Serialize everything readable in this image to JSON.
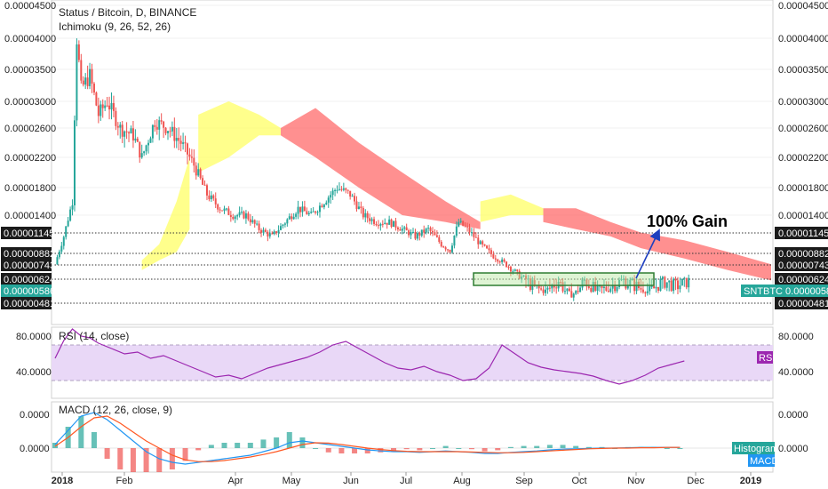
{
  "header": {
    "title": "Status / Bitcoin, D, BINANCE",
    "indicator": "Ichimoku (9, 26, 52, 26)"
  },
  "annotation": {
    "gain_text": "100% Gain"
  },
  "colors": {
    "up": "#26a69a",
    "down": "#ef5350",
    "cloud_bull": "#ffff66",
    "cloud_bear": "#ff6b6b",
    "rsi_line": "#9c27b0",
    "rsi_band": "#e9d8f7",
    "macd_line": "#2196f3",
    "signal_line": "#ff5722",
    "hist_up": "#26a69a",
    "hist_down": "#ef5350",
    "arrow": "#1e3fbf"
  },
  "chart_data": [
    {
      "type": "candlestick",
      "title": "Status / Bitcoin, D, BINANCE",
      "y_ticks": [
        "0.00004500",
        "0.00004000",
        "0.00003500",
        "0.00003000",
        "0.00002600",
        "0.00002200",
        "0.00001800",
        "0.00001400"
      ],
      "y_tick_values": [
        4.5e-05,
        4e-05,
        3.5e-05,
        3e-05,
        2.6e-05,
        2.2e-05,
        1.8e-05,
        1.4e-05
      ],
      "price_levels": [
        {
          "label": "0.00001145",
          "value": 1.145e-05,
          "style": "dark"
        },
        {
          "label": "0.00000882",
          "value": 8.82e-06,
          "style": "dark"
        },
        {
          "label": "0.00000743",
          "value": 7.43e-06,
          "style": "dark"
        },
        {
          "label": "0.00000624",
          "value": 6.24e-06,
          "style": "dark"
        },
        {
          "label": "0.00000586",
          "value": 5.86e-06,
          "style": "teal"
        },
        {
          "label": "0.00000481",
          "value": 4.81e-06,
          "style": "dark"
        }
      ],
      "symbol_tag": "SNTBTC",
      "x_labels": [
        "2018",
        "Feb",
        "Apr",
        "May",
        "Jun",
        "Jul",
        "Aug",
        "Sep",
        "Oct",
        "Nov",
        "Dec",
        "2019"
      ],
      "price_path": [
        [
          0,
          7.5e-06
        ],
        [
          4,
          1.1e-05
        ],
        [
          8,
          1.6e-05
        ],
        [
          10,
          4e-05
        ],
        [
          12,
          3.2e-05
        ],
        [
          16,
          3.4e-05
        ],
        [
          20,
          2.8e-05
        ],
        [
          24,
          3e-05
        ],
        [
          30,
          2.6e-05
        ],
        [
          36,
          2.5e-05
        ],
        [
          40,
          2.2e-05
        ],
        [
          46,
          2.7e-05
        ],
        [
          52,
          2.6e-05
        ],
        [
          58,
          2.4e-05
        ],
        [
          64,
          2.1e-05
        ],
        [
          70,
          1.7e-05
        ],
        [
          76,
          1.5e-05
        ],
        [
          82,
          1.4e-05
        ],
        [
          88,
          1.4e-05
        ],
        [
          94,
          1.2e-05
        ],
        [
          100,
          1.1e-05
        ],
        [
          106,
          1.3e-05
        ],
        [
          112,
          1.5e-05
        ],
        [
          118,
          1.4e-05
        ],
        [
          124,
          1.6e-05
        ],
        [
          130,
          1.8e-05
        ],
        [
          136,
          1.7e-05
        ],
        [
          142,
          1.4e-05
        ],
        [
          148,
          1.3e-05
        ],
        [
          154,
          1.3e-05
        ],
        [
          160,
          1.2e-05
        ],
        [
          166,
          1.1e-05
        ],
        [
          172,
          1.2e-05
        ],
        [
          178,
          1e-05
        ],
        [
          182,
          9.2e-06
        ],
        [
          186,
          1.3e-05
        ],
        [
          190,
          1.2e-05
        ],
        [
          196,
          1e-05
        ],
        [
          202,
          8.5e-06
        ],
        [
          208,
          7.5e-06
        ],
        [
          214,
          6.5e-06
        ],
        [
          220,
          6e-06
        ],
        [
          226,
          5.8e-06
        ],
        [
          232,
          6.2e-06
        ],
        [
          238,
          5.5e-06
        ],
        [
          244,
          6.2e-06
        ],
        [
          250,
          5.8e-06
        ],
        [
          256,
          6e-06
        ],
        [
          262,
          6.2e-06
        ],
        [
          268,
          6e-06
        ],
        [
          274,
          5.8e-06
        ],
        [
          280,
          6.2e-06
        ],
        [
          286,
          6e-06
        ],
        [
          292,
          6.2e-06
        ]
      ]
    },
    {
      "type": "line",
      "title": "RSI (14, close)",
      "y_ticks": [
        "80.0000",
        "40.0000"
      ],
      "y_tick_values": [
        80,
        40
      ],
      "band": [
        30,
        70
      ],
      "badge": "RSI",
      "x": [
        0,
        4,
        8,
        12,
        16,
        20,
        26,
        32,
        38,
        44,
        50,
        56,
        62,
        68,
        74,
        80,
        86,
        92,
        98,
        104,
        110,
        116,
        122,
        128,
        134,
        140,
        146,
        152,
        158,
        164,
        170,
        176,
        182,
        188,
        194,
        200,
        206,
        212,
        218,
        224,
        230,
        236,
        242,
        248,
        254,
        260,
        266,
        272,
        278,
        284,
        290
      ],
      "y": [
        55,
        75,
        88,
        80,
        78,
        72,
        66,
        60,
        62,
        55,
        58,
        52,
        46,
        40,
        34,
        36,
        32,
        38,
        44,
        48,
        52,
        56,
        62,
        70,
        74,
        66,
        58,
        50,
        44,
        42,
        46,
        40,
        36,
        30,
        32,
        44,
        70,
        60,
        50,
        45,
        42,
        40,
        38,
        35,
        30,
        26,
        30,
        36,
        44,
        48,
        52
      ]
    },
    {
      "type": "line",
      "title": "MACD (12, 26, close, 9)",
      "y_ticks": [
        "0.0000",
        "0.0000"
      ],
      "y_tick_values": [
        1,
        0
      ],
      "badges": [
        "Histogram",
        "MACD"
      ],
      "x": [
        0,
        6,
        12,
        18,
        24,
        30,
        36,
        42,
        48,
        54,
        60,
        66,
        72,
        78,
        84,
        90,
        96,
        102,
        108,
        114,
        120,
        126,
        132,
        138,
        144,
        150,
        156,
        162,
        168,
        174,
        180,
        186,
        192,
        198,
        204,
        210,
        216,
        222,
        228,
        234,
        240,
        246,
        252,
        258,
        264,
        270,
        276,
        282,
        288
      ],
      "macd": [
        0.1,
        0.5,
        0.9,
        1.0,
        0.8,
        0.5,
        0.2,
        -0.1,
        -0.3,
        -0.4,
        -0.45,
        -0.4,
        -0.35,
        -0.3,
        -0.25,
        -0.2,
        -0.1,
        0.0,
        0.15,
        0.2,
        0.15,
        0.1,
        0.05,
        0.0,
        -0.05,
        -0.08,
        -0.1,
        -0.1,
        -0.12,
        -0.1,
        -0.08,
        -0.1,
        -0.12,
        -0.15,
        -0.15,
        -0.12,
        -0.1,
        -0.08,
        -0.05,
        -0.03,
        -0.02,
        -0.01,
        0.0,
        0.0,
        0.01,
        0.02,
        0.02,
        0.02,
        0.02
      ],
      "signal": [
        0.05,
        0.3,
        0.6,
        0.85,
        0.9,
        0.7,
        0.45,
        0.2,
        0.0,
        -0.2,
        -0.33,
        -0.38,
        -0.38,
        -0.35,
        -0.3,
        -0.25,
        -0.18,
        -0.1,
        0.0,
        0.1,
        0.15,
        0.14,
        0.1,
        0.05,
        0.0,
        -0.04,
        -0.07,
        -0.09,
        -0.1,
        -0.1,
        -0.1,
        -0.1,
        -0.11,
        -0.12,
        -0.13,
        -0.13,
        -0.12,
        -0.1,
        -0.08,
        -0.06,
        -0.04,
        -0.02,
        -0.01,
        0.0,
        0.0,
        0.01,
        0.01,
        0.02,
        0.02
      ]
    }
  ]
}
